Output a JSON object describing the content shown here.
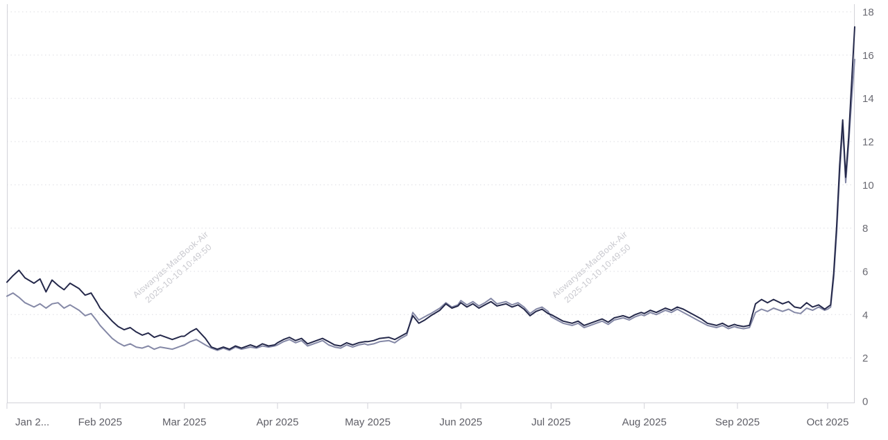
{
  "watermark": {
    "line1": "Aiswaryas-MacBook-Air",
    "line2": "2025-10-10 10:49:50"
  },
  "chart_data": {
    "type": "line",
    "title": "",
    "legend": "none",
    "grid": "horizontal-dotted",
    "colors": {
      "navy": "#24284a",
      "slate": "#8488a6",
      "grid": "#dcdce2",
      "axis": "#d2d2d8",
      "label_x": "#5e5e66",
      "label_y": "#6a6a72"
    },
    "x_axis": {
      "labels": [
        "Jan 2...",
        "Feb 2025",
        "Mar 2025",
        "Apr 2025",
        "May 2025",
        "Jun 2025",
        "Jul 2025",
        "Aug 2025",
        "Sep 2025",
        "Oct 2025"
      ],
      "tick_days": [
        0,
        31,
        59,
        90,
        120,
        151,
        181,
        212,
        243,
        273
      ],
      "total_days": 282
    },
    "y_axis": {
      "ticks": [
        0,
        2,
        4,
        6,
        8,
        10,
        12,
        14,
        16,
        18
      ],
      "range": [
        0,
        18
      ],
      "position": "right"
    },
    "x_days": [
      0,
      2,
      4,
      6,
      9,
      11,
      13,
      15,
      17,
      19,
      21,
      24,
      26,
      28,
      30,
      31,
      33,
      35,
      37,
      39,
      41,
      43,
      45,
      47,
      49,
      51,
      53,
      55,
      57,
      58,
      59,
      61,
      63,
      66,
      68,
      70,
      72,
      74,
      76,
      78,
      81,
      83,
      85,
      87,
      89,
      90,
      92,
      94,
      96,
      98,
      100,
      103,
      105,
      107,
      109,
      111,
      113,
      115,
      117,
      119,
      120,
      122,
      124,
      127,
      129,
      131,
      133,
      135,
      137,
      139,
      141,
      144,
      146,
      148,
      150,
      151,
      153,
      155,
      157,
      159,
      161,
      163,
      166,
      168,
      170,
      172,
      174,
      176,
      178,
      180,
      181,
      183,
      185,
      188,
      190,
      192,
      194,
      196,
      198,
      200,
      202,
      205,
      207,
      209,
      211,
      212,
      214,
      216,
      219,
      221,
      223,
      225,
      227,
      229,
      231,
      233,
      236,
      238,
      240,
      242,
      243,
      245,
      247,
      249,
      251,
      253,
      255,
      258,
      260,
      262,
      264,
      266,
      268,
      270,
      272,
      273,
      274,
      275,
      276,
      277,
      278,
      279,
      280,
      281,
      282
    ],
    "series": [
      {
        "name": "slate-series",
        "color": "#8488a6",
        "values": [
          4.85,
          5.0,
          4.8,
          4.55,
          4.35,
          4.5,
          4.3,
          4.5,
          4.55,
          4.3,
          4.45,
          4.2,
          3.95,
          4.05,
          3.7,
          3.5,
          3.2,
          2.9,
          2.7,
          2.55,
          2.65,
          2.5,
          2.45,
          2.55,
          2.4,
          2.5,
          2.45,
          2.4,
          2.5,
          2.55,
          2.6,
          2.75,
          2.85,
          2.6,
          2.45,
          2.35,
          2.45,
          2.35,
          2.5,
          2.4,
          2.5,
          2.45,
          2.55,
          2.5,
          2.55,
          2.6,
          2.75,
          2.85,
          2.7,
          2.8,
          2.55,
          2.7,
          2.8,
          2.6,
          2.5,
          2.45,
          2.6,
          2.5,
          2.6,
          2.65,
          2.6,
          2.65,
          2.75,
          2.8,
          2.7,
          2.9,
          3.05,
          4.1,
          3.75,
          3.9,
          4.05,
          4.3,
          4.55,
          4.35,
          4.45,
          4.65,
          4.45,
          4.6,
          4.4,
          4.55,
          4.75,
          4.5,
          4.6,
          4.45,
          4.55,
          4.35,
          4.05,
          4.25,
          4.35,
          4.15,
          3.9,
          3.75,
          3.6,
          3.5,
          3.6,
          3.4,
          3.5,
          3.6,
          3.7,
          3.55,
          3.75,
          3.85,
          3.75,
          3.9,
          4.0,
          3.95,
          4.1,
          4.0,
          4.2,
          4.1,
          4.25,
          4.1,
          3.95,
          3.8,
          3.65,
          3.5,
          3.4,
          3.5,
          3.35,
          3.45,
          3.4,
          3.35,
          3.4,
          4.1,
          4.25,
          4.15,
          4.3,
          4.15,
          4.25,
          4.1,
          4.05,
          4.3,
          4.2,
          4.35,
          4.2,
          4.25,
          4.35,
          5.7,
          7.8,
          10.5,
          12.7,
          10.1,
          11.9,
          14.0,
          15.8
        ]
      },
      {
        "name": "navy-series",
        "color": "#24284a",
        "values": [
          5.5,
          5.8,
          6.05,
          5.7,
          5.45,
          5.65,
          5.05,
          5.6,
          5.35,
          5.15,
          5.45,
          5.2,
          4.9,
          5.0,
          4.55,
          4.3,
          4.0,
          3.7,
          3.45,
          3.3,
          3.4,
          3.2,
          3.05,
          3.15,
          2.95,
          3.05,
          2.95,
          2.85,
          2.95,
          3.0,
          3.0,
          3.2,
          3.35,
          2.9,
          2.5,
          2.4,
          2.5,
          2.4,
          2.55,
          2.45,
          2.6,
          2.5,
          2.65,
          2.55,
          2.6,
          2.7,
          2.85,
          2.95,
          2.8,
          2.9,
          2.65,
          2.8,
          2.9,
          2.75,
          2.6,
          2.55,
          2.7,
          2.6,
          2.7,
          2.75,
          2.75,
          2.8,
          2.9,
          2.95,
          2.85,
          3.0,
          3.15,
          3.95,
          3.6,
          3.75,
          3.95,
          4.2,
          4.5,
          4.3,
          4.4,
          4.55,
          4.35,
          4.5,
          4.3,
          4.45,
          4.6,
          4.4,
          4.5,
          4.35,
          4.45,
          4.25,
          3.95,
          4.15,
          4.25,
          4.05,
          4.0,
          3.85,
          3.7,
          3.6,
          3.7,
          3.5,
          3.6,
          3.7,
          3.8,
          3.65,
          3.85,
          3.95,
          3.85,
          4.0,
          4.1,
          4.05,
          4.2,
          4.1,
          4.3,
          4.2,
          4.35,
          4.25,
          4.1,
          3.95,
          3.8,
          3.6,
          3.5,
          3.6,
          3.45,
          3.55,
          3.5,
          3.45,
          3.5,
          4.5,
          4.7,
          4.55,
          4.7,
          4.5,
          4.6,
          4.35,
          4.3,
          4.55,
          4.35,
          4.45,
          4.25,
          4.35,
          4.45,
          5.9,
          8.1,
          10.9,
          13.0,
          10.35,
          12.2,
          14.8,
          17.3
        ]
      }
    ]
  }
}
